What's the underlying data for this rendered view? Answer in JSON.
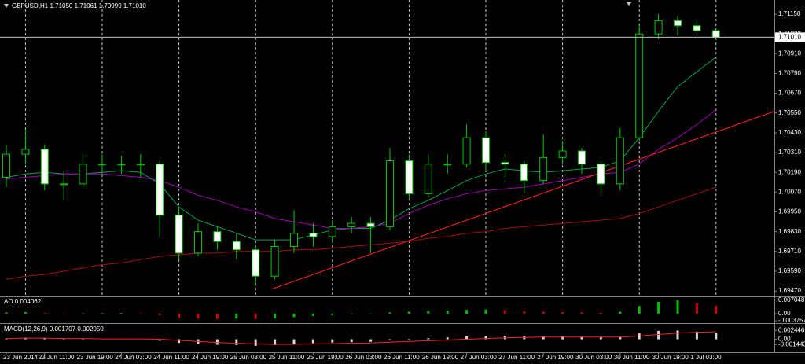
{
  "chart_data": [
    {
      "type": "candlestick",
      "title": "GBPUSD,H1  1.71050 1.71061 1.70999 1.71010",
      "categories": [
        "23 Jun 2014",
        null,
        "23 Jun 11:00",
        null,
        "23 Jun 19:00",
        null,
        "24 Jun 03:00",
        null,
        "24 Jun 11:00",
        null,
        "24 Jun 19:00",
        null,
        "25 Jun 03:00",
        null,
        "25 Jun 11:00",
        null,
        "25 Jun 19:00",
        null,
        "26 Jun 03:00",
        null,
        "26 Jun 11:00",
        null,
        "26 Jun 19:00",
        null,
        "27 Jun 03:00",
        null,
        "27 Jun 11:00",
        null,
        "27 Jun 19:00",
        null,
        "30 Jun 03:00",
        null,
        "30 Jun 11:00",
        null,
        "30 Jun 19:00",
        null,
        "1 Jul 03:00",
        null
      ],
      "open": [
        1.7016,
        1.703,
        1.7033,
        1.7012,
        1.7012,
        1.7024,
        1.7024,
        1.7024,
        1.7024,
        1.6993,
        1.697,
        1.6983,
        1.6977,
        1.6972,
        1.6956,
        1.6974,
        1.6982,
        1.698,
        1.6986,
        1.6988,
        1.6986,
        1.7026,
        1.7006,
        1.7024,
        1.7024,
        1.704,
        1.7025,
        1.7024,
        1.7014,
        1.7028,
        1.7032,
        1.7024,
        1.7012,
        1.704,
        1.7103,
        1.7111,
        1.7108,
        1.7105
      ],
      "high": [
        1.7036,
        1.7045,
        1.7036,
        1.702,
        1.703,
        1.703,
        1.7029,
        1.703,
        1.7026,
        1.6998,
        1.6988,
        1.6986,
        1.6982,
        1.6974,
        1.6978,
        1.6996,
        1.6988,
        1.699,
        1.6992,
        1.6992,
        1.7034,
        1.703,
        1.703,
        1.703,
        1.7048,
        1.7044,
        1.703,
        1.7026,
        1.7042,
        1.7038,
        1.7034,
        1.7026,
        1.7046,
        1.7108,
        1.7115,
        1.7114,
        1.7111,
        1.71061
      ],
      "low": [
        1.701,
        1.7024,
        1.7008,
        1.7002,
        1.701,
        1.7018,
        1.7018,
        1.7016,
        1.698,
        1.6966,
        1.6968,
        1.6972,
        1.6966,
        1.695,
        1.6954,
        1.697,
        1.6974,
        1.6976,
        1.6982,
        1.697,
        1.6984,
        1.7002,
        1.7004,
        1.7018,
        1.7022,
        1.702,
        1.7016,
        1.7006,
        1.7012,
        1.7024,
        1.7018,
        1.7005,
        1.7008,
        1.7038,
        1.71,
        1.7102,
        1.7102,
        1.70999
      ],
      "close": [
        1.703,
        1.7033,
        1.7012,
        1.7012,
        1.7024,
        1.7024,
        1.7024,
        1.7024,
        1.6993,
        1.697,
        1.6983,
        1.6977,
        1.6972,
        1.6956,
        1.6974,
        1.6982,
        1.698,
        1.6986,
        1.6988,
        1.6986,
        1.7026,
        1.7006,
        1.7024,
        1.7024,
        1.704,
        1.7025,
        1.7024,
        1.7014,
        1.7028,
        1.7032,
        1.7024,
        1.7012,
        1.704,
        1.7103,
        1.7111,
        1.7108,
        1.7105,
        1.7101
      ],
      "candle_colors": {
        "up": "#000000",
        "down": "#ffffff",
        "outline": "#00c800"
      },
      "series": [
        {
          "color": "#00a050",
          "values": [
            1.7016,
            1.7018,
            1.7019,
            1.7018,
            1.7018,
            1.7019,
            1.702,
            1.7019,
            1.7012,
            1.6998,
            1.699,
            1.6986,
            1.6982,
            1.6978,
            1.6978,
            1.6978,
            1.6981,
            1.6984,
            1.6985,
            1.6985,
            1.699,
            1.6997,
            1.7002,
            1.7008,
            1.7014,
            1.7018,
            1.7021,
            1.702,
            1.7019,
            1.702,
            1.7021,
            1.7022,
            1.7026,
            1.704,
            1.7056,
            1.7071,
            1.708,
            1.7089
          ]
        },
        {
          "color": "#a000b0",
          "values": [
            1.7015,
            1.7016,
            1.7017,
            1.7018,
            1.7018,
            1.7018,
            1.7017,
            1.7016,
            1.7014,
            1.701,
            1.7005,
            1.7002,
            1.6998,
            1.6995,
            1.6991,
            1.6989,
            1.6987,
            1.6985,
            1.6985,
            1.6986,
            1.6988,
            1.6994,
            1.6999,
            1.7003,
            1.7006,
            1.7008,
            1.7009,
            1.701,
            1.7012,
            1.7014,
            1.7016,
            1.7018,
            1.7019,
            1.7024,
            1.7033,
            1.704,
            1.7048,
            1.7057
          ]
        },
        {
          "color": "#a01010",
          "values": [
            1.6954,
            1.6956,
            1.6957,
            1.6959,
            1.6961,
            1.6963,
            1.6964,
            1.6966,
            1.6968,
            1.6969,
            1.697,
            1.697,
            1.6971,
            1.6971,
            1.6971,
            1.6972,
            1.6972,
            1.6973,
            1.6974,
            1.6975,
            1.6976,
            1.6977,
            1.6979,
            1.698,
            1.6982,
            1.6983,
            1.6985,
            1.6986,
            1.6987,
            1.6988,
            1.6989,
            1.699,
            1.6991,
            1.6994,
            1.6998,
            1.7002,
            1.7006,
            1.701
          ]
        }
      ],
      "trendline": {
        "color": "#e02020",
        "values": [
          1.6948,
          1.7056
        ]
      },
      "current_price": {
        "value": 1.7101,
        "label": "1.71010"
      },
      "ylim": [
        1.69437,
        1.71236
      ],
      "yticks": [
        {
          "value": 1.7115,
          "label": "1.71150"
        },
        {
          "value": 1.7103,
          "label": "1.71030"
        },
        {
          "value": 1.7091,
          "label": "1.70910"
        },
        {
          "value": 1.7079,
          "label": "1.70790"
        },
        {
          "value": 1.7067,
          "label": "1.70670"
        },
        {
          "value": 1.7055,
          "label": "1.70550"
        },
        {
          "value": 1.7043,
          "label": "1.70430"
        },
        {
          "value": 1.7031,
          "label": "1.70310"
        },
        {
          "value": 1.7019,
          "label": "1.70190"
        },
        {
          "value": 1.7007,
          "label": "1.70070"
        },
        {
          "value": 1.6995,
          "label": "1.69950"
        },
        {
          "value": 1.6983,
          "label": "1.69830"
        },
        {
          "value": 1.6971,
          "label": "1.69710"
        },
        {
          "value": 1.6959,
          "label": "1.69590"
        },
        {
          "value": 1.6947,
          "label": "1.69470"
        }
      ],
      "grid": true
    },
    {
      "type": "bar",
      "title": "AO 0.004062",
      "values": [
        0.0006,
        0.0008,
        0.0004,
        0.0001,
        0.0002,
        0.0003,
        0.0003,
        0.0002,
        -0.0008,
        -0.002,
        -0.0026,
        -0.0028,
        -0.0026,
        -0.0028,
        -0.0024,
        -0.0018,
        -0.0012,
        -0.0008,
        -0.0004,
        -0.0002,
        0.0006,
        0.001,
        0.0014,
        0.0016,
        0.002,
        0.0022,
        0.0018,
        0.0012,
        0.001,
        0.0008,
        0.0006,
        0.0004,
        0.001,
        0.004,
        0.0062,
        0.007,
        0.0055,
        0.004062
      ],
      "up_color": "#00c000",
      "down_color": "#d00000",
      "ylim": [
        -0.00493,
        0.0086
      ],
      "yticks": [
        0.007048,
        {
          "value": 0,
          "label": "0.00"
        },
        -0.003757
      ]
    },
    {
      "type": "bar",
      "title": "MACD(12,26,9) 0.001707 0.002050",
      "values": [
        0.0002,
        0.0004,
        0.0003,
        0.0001,
        0.0001,
        0.0001,
        0.0001,
        0.0001,
        -0.0004,
        -0.001,
        -0.0013,
        -0.0015,
        -0.0016,
        -0.0018,
        -0.0016,
        -0.0013,
        -0.0011,
        -0.0009,
        -0.0008,
        -0.0007,
        -0.0002,
        0.0001,
        0.0003,
        0.0005,
        0.0008,
        0.0009,
        0.0009,
        0.0008,
        0.0008,
        0.0008,
        0.0007,
        0.0005,
        0.0007,
        0.0016,
        0.0023,
        0.0024,
        0.0021,
        0.001707
      ],
      "color": "#d8d8d8",
      "series": [
        {
          "color": "#ff2020",
          "values": [
            0.0002,
            0.0003,
            0.0003,
            0.0002,
            0.0002,
            0.0001,
            0.0001,
            0.0001,
            0.0,
            -0.0003,
            -0.0006,
            -0.0009,
            -0.0011,
            -0.0013,
            -0.0014,
            -0.0014,
            -0.0013,
            -0.0012,
            -0.0011,
            -0.001,
            -0.0008,
            -0.0006,
            -0.0004,
            -0.0002,
            0.0,
            0.0002,
            0.0004,
            0.0005,
            0.0006,
            0.0006,
            0.0006,
            0.0006,
            0.0006,
            0.0009,
            0.0013,
            0.0017,
            0.0019,
            0.00205
          ]
        }
      ],
      "ylim": [
        -0.00356,
        0.00422
      ],
      "yticks": [
        0.002446,
        {
          "value": 0,
          "label": "0.00"
        },
        -0.001443
      ]
    }
  ]
}
